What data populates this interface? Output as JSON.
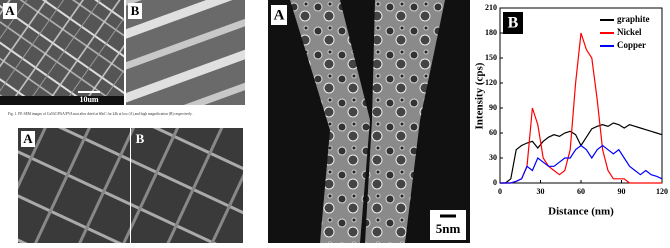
{
  "panels": {
    "sem_top": {
      "left_label": "A",
      "right_label": "B",
      "scale": "10um"
    },
    "caption": "Fig. 1. FE-SEM images of CuNiC/PAA/PVA mat after dried at 60oC for 24h at low (A) and high magnification (B) respectively.",
    "sem_bottom": {
      "left_label": "A",
      "right_label": "B"
    },
    "tem": {
      "label": "A",
      "scale": "5nm"
    },
    "chart_label": "B"
  },
  "chart_data": {
    "type": "line",
    "x_label": "Distance (nm)",
    "y_label": "Intensity (cps)",
    "x": [
      0,
      4,
      8,
      12,
      16,
      20,
      24,
      28,
      32,
      36,
      40,
      44,
      48,
      52,
      56,
      60,
      64,
      68,
      72,
      76,
      80,
      84,
      88,
      92,
      96,
      100,
      104,
      108,
      112,
      116,
      120
    ],
    "series": [
      {
        "name": "graphite",
        "color": "#000000",
        "values": [
          0,
          0,
          5,
          40,
          45,
          48,
          50,
          42,
          50,
          55,
          58,
          56,
          60,
          62,
          58,
          45,
          55,
          65,
          68,
          70,
          68,
          72,
          70,
          66,
          70,
          68,
          66,
          64,
          62,
          60,
          58
        ]
      },
      {
        "name": "Nickel",
        "color": "#ff0000",
        "values": [
          0,
          0,
          0,
          2,
          5,
          20,
          90,
          70,
          30,
          20,
          15,
          10,
          15,
          40,
          120,
          180,
          160,
          150,
          100,
          40,
          15,
          5,
          5,
          5,
          0,
          0,
          0,
          0,
          0,
          0,
          0
        ]
      },
      {
        "name": "Copper",
        "color": "#0000ff",
        "values": [
          0,
          0,
          0,
          2,
          5,
          20,
          15,
          30,
          25,
          20,
          20,
          25,
          30,
          30,
          40,
          45,
          40,
          30,
          40,
          45,
          40,
          35,
          40,
          30,
          20,
          15,
          10,
          15,
          10,
          8,
          5
        ]
      }
    ],
    "xlim": [
      0,
      120
    ],
    "xticks": [
      0,
      30,
      60,
      90,
      120
    ],
    "ylim": [
      0,
      210
    ],
    "yticks": [
      0,
      30,
      60,
      90,
      120,
      150,
      180,
      210
    ],
    "legend": "upper right"
  }
}
